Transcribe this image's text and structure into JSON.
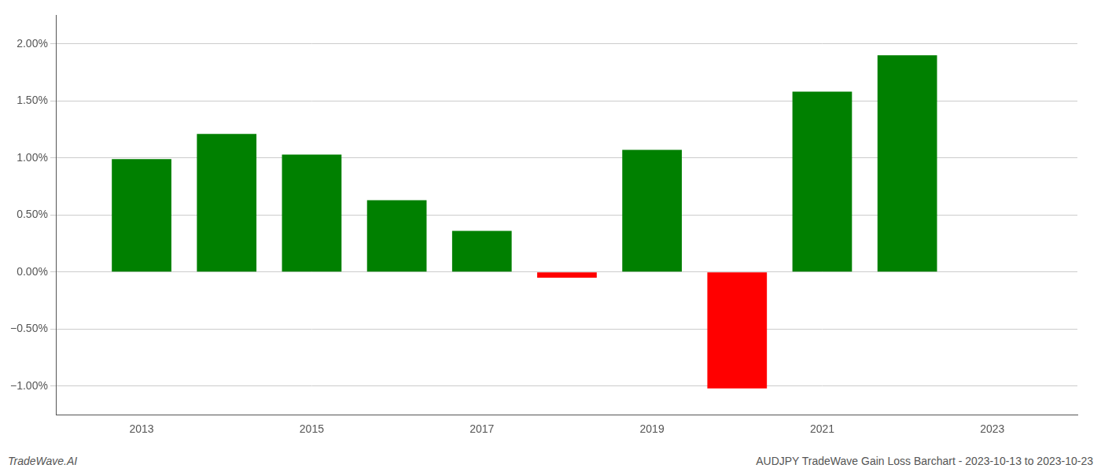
{
  "chart_data": {
    "type": "bar",
    "title": "AUDJPY TradeWave Gain Loss Barchart - 2023-10-13 to 2023-10-23",
    "annotations": [
      "TradeWave.AI"
    ],
    "x": [
      2013,
      2014,
      2015,
      2016,
      2017,
      2018,
      2019,
      2020,
      2021,
      2022
    ],
    "values": [
      0.99,
      1.21,
      1.03,
      0.63,
      0.36,
      -0.05,
      1.07,
      -1.02,
      1.58,
      1.9
    ],
    "colors": [
      "#008000",
      "#008000",
      "#008000",
      "#008000",
      "#008000",
      "#ff0000",
      "#008000",
      "#ff0000",
      "#008000",
      "#008000"
    ],
    "xlim": [
      2012.0,
      2024.0
    ],
    "xticks": [
      2013,
      2015,
      2017,
      2019,
      2021,
      2023
    ],
    "ylim": [
      -1.25,
      2.25
    ],
    "yticks": [
      {
        "value": -1.0,
        "label": "−1.00%"
      },
      {
        "value": -0.5,
        "label": "−0.50%"
      },
      {
        "value": 0.0,
        "label": "0.00%"
      },
      {
        "value": 0.5,
        "label": "0.50%"
      },
      {
        "value": 1.0,
        "label": "1.00%"
      },
      {
        "value": 1.5,
        "label": "1.50%"
      },
      {
        "value": 2.0,
        "label": "2.00%"
      }
    ],
    "grid": "y"
  }
}
